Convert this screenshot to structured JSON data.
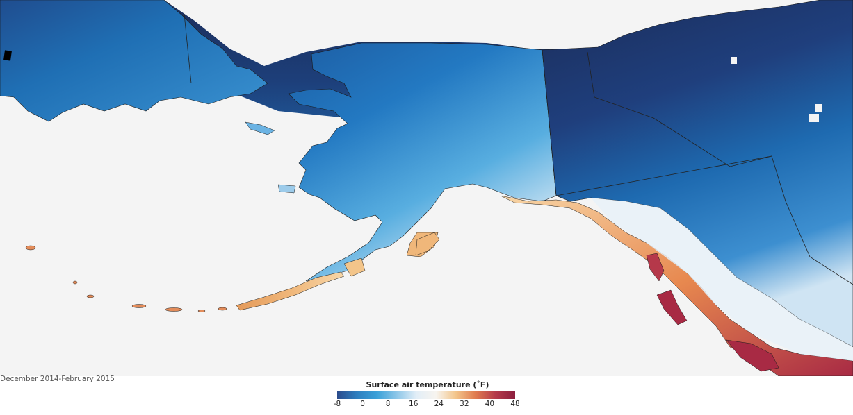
{
  "date_range": "December 2014-February 2015",
  "legend": {
    "title": "Surface air temperature (˚F)",
    "ticks": [
      "-8",
      "0",
      "8",
      "16",
      "24",
      "32",
      "40",
      "48"
    ],
    "min": -8,
    "max": 48,
    "colors": [
      "#2b4b8c",
      "#2f7fbf",
      "#3aa0d8",
      "#8cc6e8",
      "#e2eef7",
      "#f7f4ef",
      "#f3c58a",
      "#e07b4f",
      "#b53a4a",
      "#8c1f3e"
    ]
  },
  "palette": {
    "ocean": "#f4f4f4",
    "cold_dark": "#1b2d5a",
    "cold_mid": "#1f6fb4",
    "cold_light": "#4aa3dc",
    "cool": "#a9d0ec",
    "warm": "#f0b27a",
    "hot": "#a82a44",
    "border": "#333333"
  }
}
